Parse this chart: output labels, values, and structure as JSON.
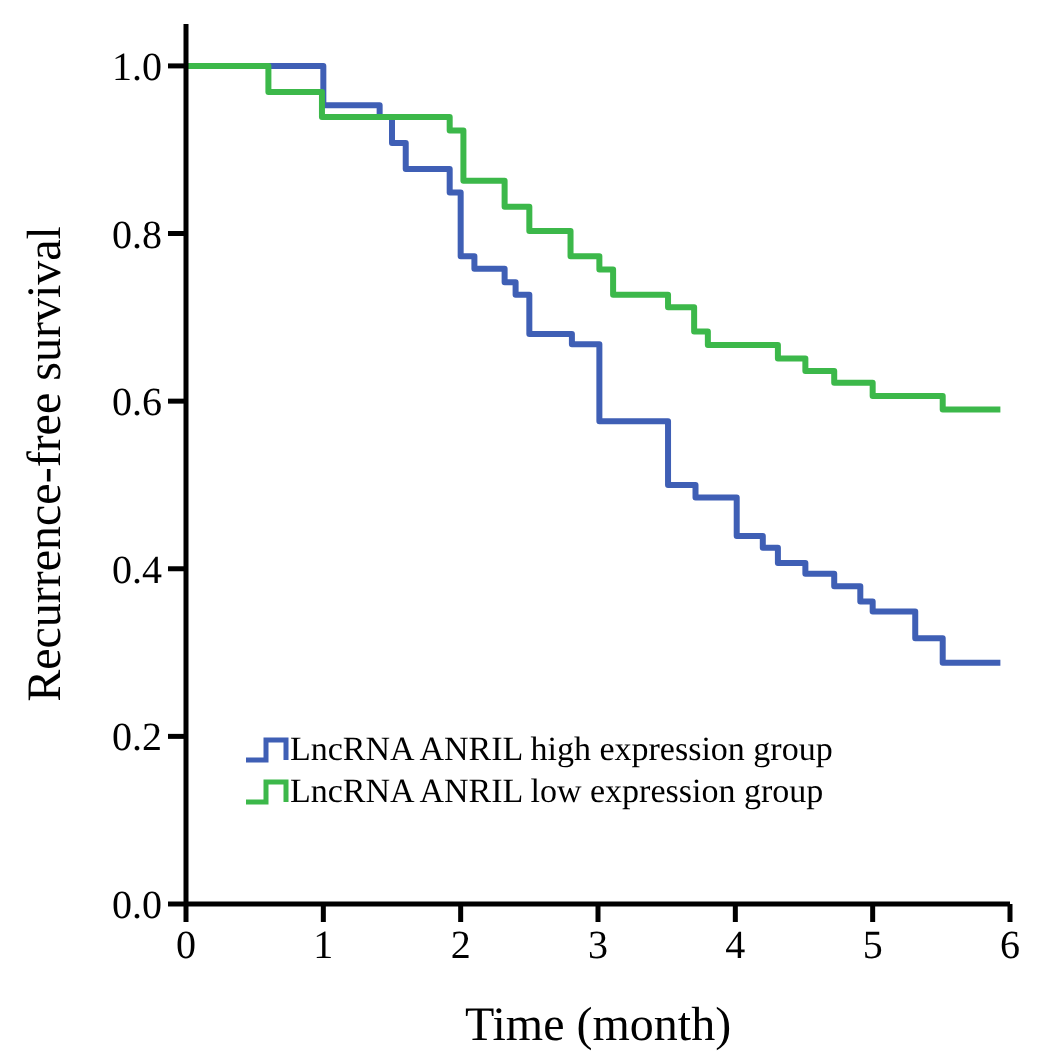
{
  "chart_data": {
    "type": "step",
    "xlabel": "Time (month)",
    "ylabel": "Recurrence-free survival",
    "xlim": [
      0,
      6
    ],
    "ylim": [
      0,
      1.05
    ],
    "xticks": [
      0,
      1,
      2,
      3,
      4,
      5,
      6
    ],
    "yticks": [
      {
        "value": 0,
        "label": "0.0"
      },
      {
        "value": 0.2,
        "label": "0.2"
      },
      {
        "value": 0.4,
        "label": "0.4"
      },
      {
        "value": 0.6,
        "label": "0.6"
      },
      {
        "value": 0.8,
        "label": "0.8"
      },
      {
        "value": 1,
        "label": "1.0"
      }
    ],
    "grid": false,
    "legend": "bottom left",
    "line_style": "solid",
    "marker": "none",
    "series": [
      {
        "name": "LncRNA ANRIL high expression group",
        "color": "#3f5fb5",
        "x": [
          0,
          1.0,
          1.41,
          1.5,
          1.6,
          1.92,
          2.0,
          2.1,
          2.32,
          2.4,
          2.5,
          2.81,
          3.01,
          3.51,
          3.71,
          4.01,
          4.2,
          4.31,
          4.51,
          4.72,
          4.91,
          5.0,
          5.31,
          5.51,
          5.93
        ],
        "values": [
          1.0,
          0.953,
          0.939,
          0.908,
          0.877,
          0.849,
          0.773,
          0.758,
          0.742,
          0.727,
          0.68,
          0.668,
          0.576,
          0.5,
          0.485,
          0.439,
          0.425,
          0.407,
          0.394,
          0.379,
          0.361,
          0.349,
          0.317,
          0.288,
          0.288
        ]
      },
      {
        "name": "LncRNA ANRIL low expression group",
        "color": "#3cb84a",
        "x": [
          0,
          0.6,
          0.99,
          1.92,
          2.02,
          2.32,
          2.5,
          2.8,
          3.01,
          3.11,
          3.51,
          3.7,
          3.8,
          4.31,
          4.51,
          4.72,
          5.0,
          5.51,
          5.93
        ],
        "values": [
          1.0,
          0.969,
          0.939,
          0.923,
          0.863,
          0.832,
          0.803,
          0.773,
          0.757,
          0.727,
          0.712,
          0.683,
          0.667,
          0.651,
          0.636,
          0.622,
          0.606,
          0.59,
          0.59
        ]
      }
    ]
  }
}
